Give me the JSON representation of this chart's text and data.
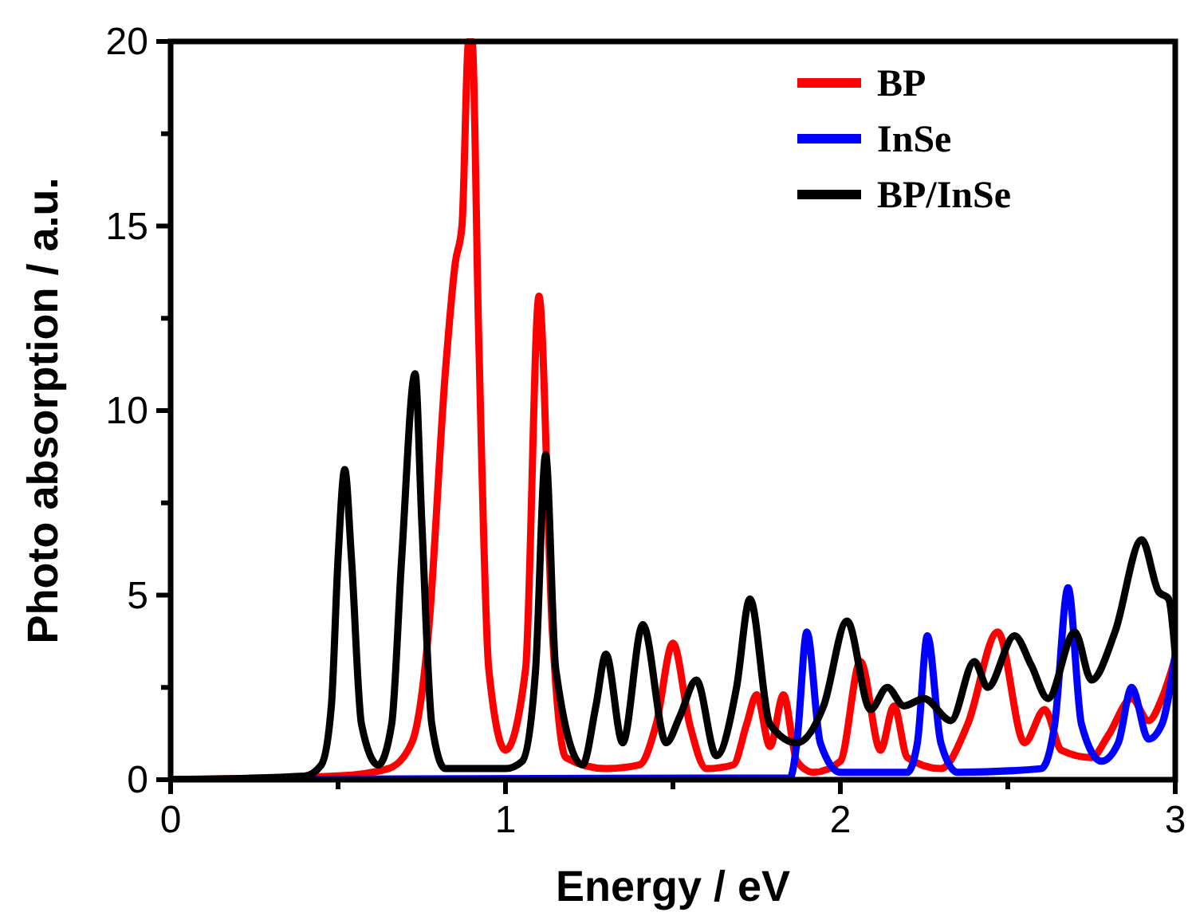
{
  "chart_data": {
    "type": "line",
    "xlabel": "Energy / eV",
    "ylabel": "Photo absorption / a.u.",
    "xlim": [
      0,
      3
    ],
    "ylim": [
      0,
      20
    ],
    "xticks": [
      0,
      {
        "value": 0.5,
        "label": null
      },
      1,
      {
        "value": 1.5,
        "label": null
      },
      2,
      {
        "value": 2.5,
        "label": null
      },
      3
    ],
    "yticks": [
      0,
      {
        "value": 2.5,
        "label": null
      },
      5,
      {
        "value": 7.5,
        "label": null
      },
      10,
      {
        "value": 12.5,
        "label": null
      },
      15,
      {
        "value": 17.5,
        "label": null
      },
      20
    ],
    "grid": false,
    "legend": "top right",
    "line_style": "solid",
    "series": [
      {
        "name": "BP",
        "color": "#ff0000",
        "x": [
          0,
          0.5,
          0.65,
          0.72,
          0.77,
          0.82,
          0.85,
          0.87,
          0.89,
          0.9,
          0.92,
          0.95,
          1.0,
          1.06,
          1.1,
          1.14,
          1.18,
          1.3,
          1.4,
          1.45,
          1.5,
          1.55,
          1.6,
          1.68,
          1.72,
          1.75,
          1.79,
          1.83,
          1.87,
          1.92,
          2.0,
          2.06,
          2.12,
          2.16,
          2.2,
          2.3,
          2.38,
          2.47,
          2.55,
          2.61,
          2.66,
          2.75,
          2.8,
          2.87,
          2.92,
          2.96,
          3.0
        ],
        "values": [
          0,
          0.1,
          0.3,
          1,
          4,
          11,
          14,
          15,
          20,
          20,
          12,
          3,
          0.8,
          3,
          13.1,
          4,
          0.6,
          0.3,
          0.4,
          1.5,
          3.7,
          1.5,
          0.3,
          0.4,
          1.5,
          2.3,
          0.9,
          2.3,
          0.5,
          0.2,
          0.5,
          3.2,
          0.8,
          2.0,
          0.6,
          0.3,
          1.5,
          4.0,
          1.0,
          1.9,
          0.8,
          0.6,
          1.2,
          2.2,
          1.6,
          2.2,
          3.3
        ]
      },
      {
        "name": "InSe",
        "color": "#0000ff",
        "x": [
          0,
          1.85,
          1.87,
          1.9,
          1.94,
          2.0,
          2.2,
          2.23,
          2.26,
          2.3,
          2.35,
          2.6,
          2.64,
          2.68,
          2.72,
          2.78,
          2.83,
          2.87,
          2.92,
          2.96,
          3.0
        ],
        "values": [
          0,
          0.05,
          1,
          4.0,
          1,
          0.2,
          0.2,
          1,
          3.9,
          1,
          0.2,
          0.3,
          1.5,
          5.2,
          1.5,
          0.5,
          1,
          2.5,
          1.1,
          1.5,
          3.4
        ]
      },
      {
        "name": "BP/InSe",
        "color": "#000000",
        "x": [
          0,
          0.4,
          0.45,
          0.48,
          0.5,
          0.52,
          0.54,
          0.57,
          0.62,
          0.66,
          0.69,
          0.73,
          0.75,
          0.78,
          0.82,
          1.0,
          1.05,
          1.09,
          1.12,
          1.15,
          1.23,
          1.27,
          1.3,
          1.35,
          1.41,
          1.48,
          1.52,
          1.57,
          1.63,
          1.69,
          1.73,
          1.79,
          1.87,
          1.95,
          2.02,
          2.09,
          2.14,
          2.19,
          2.25,
          2.33,
          2.4,
          2.44,
          2.52,
          2.57,
          2.62,
          2.7,
          2.75,
          2.82,
          2.9,
          2.95,
          2.98,
          3.0
        ],
        "values": [
          0,
          0.1,
          0.4,
          2,
          6,
          8.4,
          6,
          1.5,
          0.4,
          1.5,
          6,
          11,
          7,
          1.5,
          0.3,
          0.3,
          0.5,
          3,
          8.8,
          3,
          0.4,
          2,
          3.4,
          1,
          4.2,
          1,
          1.7,
          2.7,
          0.65,
          2.5,
          4.9,
          1.5,
          1.0,
          2.0,
          4.3,
          1.9,
          2.5,
          2.0,
          2.2,
          1.6,
          3.2,
          2.5,
          3.9,
          3.1,
          2.2,
          4.0,
          2.7,
          4.0,
          6.5,
          5.1,
          4.9,
          3.4
        ]
      }
    ]
  }
}
